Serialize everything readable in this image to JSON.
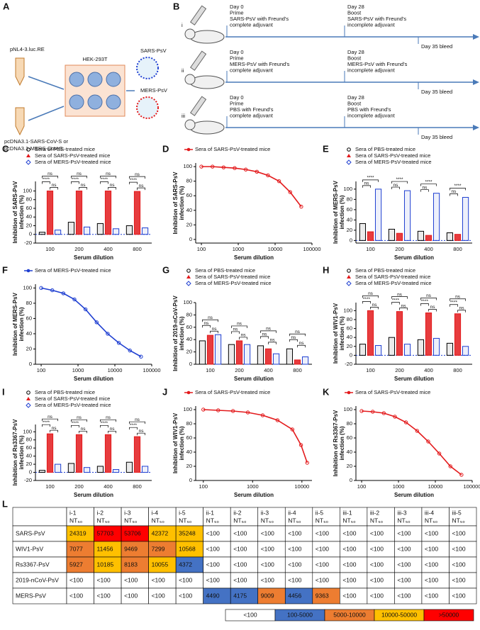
{
  "panel_a": {
    "label": "A",
    "plasmid": "pNL4-3.luc.RE",
    "cell": "HEK-293T",
    "products": [
      "SARS-PsV",
      "MERS-PsV"
    ],
    "plasmids2": [
      "pcDNA3.1-SARS-CoV-S or",
      "pcDNA3.1-MERS-CoV-S"
    ]
  },
  "panel_b": {
    "label": "B",
    "groups": [
      {
        "id": "i",
        "prime": [
          "Day 0",
          "Prime",
          "SARS-PsV with Freund's",
          "complete adjuvant"
        ],
        "boost": [
          "Day 28",
          "Boost",
          "SARS-PsV with Freund's",
          "incomplete adjuvant"
        ],
        "bleed": "Day 35 bleed"
      },
      {
        "id": "ii",
        "prime": [
          "Day 0",
          "Prime",
          "MERS-PsV with Freund's",
          "complete adjuvant"
        ],
        "boost": [
          "Day 28",
          "Boost",
          "MERS-PsV with Freund's",
          "incomplete adjuvant"
        ],
        "bleed": "Day 35 bleed"
      },
      {
        "id": "iii",
        "prime": [
          "Day 0",
          "Prime",
          "PBS with Freund's",
          "complete adjuvant"
        ],
        "boost": [
          "Day 28",
          "Boost",
          "PBS with Freund's",
          "incomplete adjuvant"
        ],
        "bleed": "Day 35 bleed"
      }
    ]
  },
  "chart_data": [
    {
      "panel": "C",
      "type": "bar",
      "ylabel": [
        "Inhibition of SARS-PsV",
        "infection (%)"
      ],
      "xlabel": "Serum dilution",
      "categories": [
        100,
        200,
        400,
        800
      ],
      "series": [
        {
          "name": "Sera of PBS-treated mice",
          "color": "#000000",
          "values": [
            5,
            28,
            25,
            20
          ]
        },
        {
          "name": "Sera of SARS-PsV-treated mice",
          "color": "#e31a1c",
          "values": [
            100,
            100,
            100,
            99
          ]
        },
        {
          "name": "Sera of MERS-PsV-treated mice",
          "color": "#1f3fd1",
          "values": [
            10,
            17,
            13,
            15
          ]
        }
      ],
      "sig": [
        [
          "ns",
          "****",
          "ns"
        ],
        [
          "ns",
          "****",
          "ns"
        ],
        [
          "ns",
          "****",
          "ns"
        ],
        [
          "ns",
          "****",
          "ns"
        ]
      ],
      "ylim": [
        -20,
        122
      ],
      "yticks": [
        -20,
        0,
        20,
        40,
        60,
        80,
        100
      ]
    },
    {
      "panel": "D",
      "type": "line",
      "ylabel": [
        "Inhibition of SARS-PsV",
        "infection (%)"
      ],
      "xlabel": "Serum dilution",
      "log_x": true,
      "x": [
        100,
        200,
        400,
        800,
        1600,
        3200,
        6400,
        12800,
        25600,
        51200
      ],
      "series": [
        {
          "name": "Sera of SARS-PsV-treated mice",
          "color": "#e31a1c",
          "values": [
            100,
            100,
            99,
            98,
            96,
            93,
            88,
            80,
            65,
            45
          ]
        }
      ],
      "xlim": [
        70,
        100000
      ],
      "xticks": [
        100,
        1000,
        10000,
        100000
      ],
      "ylim": [
        -5,
        105
      ],
      "yticks": [
        0,
        20,
        40,
        60,
        80,
        100
      ]
    },
    {
      "panel": "E",
      "type": "bar",
      "ylabel": [
        "Inhibition of MERS-PsV",
        "infection (%)"
      ],
      "xlabel": "Serum dilution",
      "categories": [
        100,
        200,
        400,
        800
      ],
      "series": [
        {
          "name": "Sera of PBS-treated mice",
          "color": "#000000",
          "values": [
            33,
            22,
            18,
            15
          ]
        },
        {
          "name": "Sera of SARS-PsV-treated mice",
          "color": "#e31a1c",
          "values": [
            17,
            14,
            10,
            12
          ]
        },
        {
          "name": "Sera of MERS-PsV-treated mice",
          "color": "#1f3fd1",
          "values": [
            100,
            97,
            92,
            84
          ]
        }
      ],
      "sig": [
        [
          "****",
          "ns"
        ],
        [
          "****",
          "ns"
        ],
        [
          "****",
          "ns"
        ],
        [
          "****",
          "ns"
        ]
      ],
      "ylim": [
        -5,
        115
      ],
      "yticks": [
        0,
        20,
        40,
        60,
        80,
        100
      ]
    },
    {
      "panel": "F",
      "type": "line",
      "ylabel": [
        "Inhibition of MERS-PsV",
        "infection (%)"
      ],
      "xlabel": "Serum dilution",
      "log_x": true,
      "x": [
        100,
        200,
        400,
        800,
        1600,
        3200,
        6400,
        12800,
        25600,
        51200
      ],
      "series": [
        {
          "name": "Sera of MERS-PsV-treated mice",
          "color": "#1f3fd1",
          "values": [
            100,
            97,
            93,
            85,
            72,
            55,
            40,
            28,
            18,
            10
          ]
        }
      ],
      "xlim": [
        70,
        100000
      ],
      "xticks": [
        100,
        1000,
        10000,
        100000
      ],
      "ylim": [
        0,
        105
      ],
      "yticks": [
        0,
        20,
        40,
        60,
        80,
        100
      ]
    },
    {
      "panel": "G",
      "type": "bar",
      "ylabel": [
        "Inhibition of 2019-nCoV-PsV",
        "infection (%)"
      ],
      "xlabel": "Serum dilution",
      "categories": [
        100,
        200,
        400,
        800
      ],
      "series": [
        {
          "name": "Sera of PBS-treated mice",
          "color": "#000000",
          "values": [
            38,
            32,
            30,
            25
          ]
        },
        {
          "name": "Sera of SARS-PsV-treated mice",
          "color": "#e31a1c",
          "values": [
            47,
            38,
            25,
            7
          ]
        },
        {
          "name": "Sera of MERS-PsV-treated mice",
          "color": "#1f3fd1",
          "values": [
            48,
            32,
            17,
            12
          ]
        }
      ],
      "sig": [
        [
          "ns",
          "ns",
          "ns"
        ],
        [
          "ns",
          "ns",
          "ns"
        ],
        [
          "ns",
          "ns",
          "ns"
        ],
        [
          "ns",
          "ns",
          "ns"
        ]
      ],
      "ylim": [
        0,
        100
      ],
      "yticks": [
        0,
        20,
        40,
        60,
        80,
        100
      ]
    },
    {
      "panel": "H",
      "type": "bar",
      "ylabel": [
        "Inhibition of WIV1-PsV",
        "infection (%)"
      ],
      "xlabel": "Serum dilution",
      "categories": [
        100,
        200,
        400,
        800
      ],
      "series": [
        {
          "name": "Sera of PBS-treated mice",
          "color": "#000000",
          "values": [
            25,
            40,
            35,
            27
          ]
        },
        {
          "name": "Sera of SARS-PsV-treated mice",
          "color": "#e31a1c",
          "values": [
            100,
            98,
            95,
            93
          ]
        },
        {
          "name": "Sera of MERS-PsV-treated mice",
          "color": "#1f3fd1",
          "values": [
            22,
            25,
            38,
            20
          ]
        }
      ],
      "sig": [
        [
          "ns",
          "****",
          "ns"
        ],
        [
          "ns",
          "****",
          "ns"
        ],
        [
          "ns",
          "****",
          "ns"
        ],
        [
          "ns",
          "****",
          "ns"
        ]
      ],
      "ylim": [
        -20,
        118
      ],
      "yticks": [
        -20,
        0,
        20,
        40,
        60,
        80,
        100
      ]
    },
    {
      "panel": "I",
      "type": "bar",
      "ylabel": [
        "Inhibition of Rs3367-PsV",
        "infection (%)"
      ],
      "xlabel": "Serum dilution",
      "categories": [
        100,
        200,
        400,
        800
      ],
      "series": [
        {
          "name": "Sera of PBS-treated mice",
          "color": "#000000",
          "values": [
            5,
            22,
            15,
            25
          ]
        },
        {
          "name": "Sera of SARS-PsV-treated mice",
          "color": "#e31a1c",
          "values": [
            95,
            93,
            93,
            88
          ]
        },
        {
          "name": "Sera of MERS-PsV-treated mice",
          "color": "#1f3fd1",
          "values": [
            20,
            12,
            7,
            15
          ]
        }
      ],
      "sig": [
        [
          "ns",
          "****",
          "ns"
        ],
        [
          "ns",
          "****",
          "ns"
        ],
        [
          "ns",
          "****",
          "ns"
        ],
        [
          "ns",
          "****",
          "ns"
        ]
      ],
      "ylim": [
        -20,
        118
      ],
      "yticks": [
        -20,
        0,
        20,
        40,
        60,
        80,
        100
      ]
    },
    {
      "panel": "J",
      "type": "line",
      "ylabel": [
        "Inhibition of WIV1-PsV",
        "infection (%)"
      ],
      "xlabel": "Serum dilution",
      "log_x": true,
      "x": [
        100,
        200,
        400,
        800,
        1600,
        3200,
        6400,
        9600,
        12800
      ],
      "series": [
        {
          "name": "Sera of SARS-PsV-treated mice",
          "color": "#e31a1c",
          "values": [
            100,
            99,
            98,
            96,
            92,
            85,
            72,
            50,
            25
          ]
        }
      ],
      "xlim": [
        70,
        16000
      ],
      "xticks": [
        100,
        1000,
        10000
      ],
      "ylim": [
        0,
        105
      ],
      "yticks": [
        0,
        20,
        40,
        60,
        80,
        100
      ]
    },
    {
      "panel": "K",
      "type": "line",
      "ylabel": [
        "Inhibition of Rs3367-PsV",
        "infection (%)"
      ],
      "xlabel": "Serum dilution",
      "log_x": true,
      "x": [
        100,
        200,
        400,
        800,
        1600,
        3200,
        6400,
        12800,
        25600,
        51200
      ],
      "series": [
        {
          "name": "Sera of SARS-PsV-treated mice",
          "color": "#e31a1c",
          "values": [
            98,
            97,
            95,
            90,
            82,
            70,
            55,
            38,
            20,
            8
          ]
        }
      ],
      "xlim": [
        70,
        100000
      ],
      "xticks": [
        100,
        1000,
        10000,
        100000
      ],
      "ylim": [
        0,
        105
      ],
      "yticks": [
        0,
        20,
        40,
        60,
        80,
        100
      ]
    }
  ],
  "table": {
    "label": "L",
    "columns": [
      "i-1",
      "i-2",
      "i-3",
      "i-4",
      "i-5",
      "ii-1",
      "ii-2",
      "ii-3",
      "ii-4",
      "ii-5",
      "iii-1",
      "iii-2",
      "iii-3",
      "iii-4",
      "iii-5"
    ],
    "unit": "NT₅₀",
    "rows": [
      {
        "name": "SARS-PsV",
        "cells": [
          24319,
          57703,
          53706,
          42372,
          35248,
          "<100",
          "<100",
          "<100",
          "<100",
          "<100",
          "<100",
          "<100",
          "<100",
          "<100",
          "<100"
        ]
      },
      {
        "name": "WIV1-PsV",
        "cells": [
          7077,
          11456,
          9469,
          7299,
          10568,
          "<100",
          "<100",
          "<100",
          "<100",
          "<100",
          "<100",
          "<100",
          "<100",
          "<100",
          "<100"
        ]
      },
      {
        "name": "Rs3367-PsV",
        "cells": [
          5927,
          10185,
          8183,
          10055,
          4372,
          "<100",
          "<100",
          "<100",
          "<100",
          "<100",
          "<100",
          "<100",
          "<100",
          "<100",
          "<100"
        ]
      },
      {
        "name": "2019-nCoV-PsV",
        "cells": [
          "<100",
          "<100",
          "<100",
          "<100",
          "<100",
          "<100",
          "<100",
          "<100",
          "<100",
          "<100",
          "<100",
          "<100",
          "<100",
          "<100",
          "<100"
        ]
      },
      {
        "name": "MERS-PsV",
        "cells": [
          "<100",
          "<100",
          "<100",
          "<100",
          "<100",
          4490,
          4175,
          9009,
          4456,
          9363,
          "<100",
          "<100",
          "<100",
          "<100",
          "<100"
        ]
      }
    ],
    "legend": [
      {
        "label": "<100",
        "color": "#ffffff"
      },
      {
        "label": "100-5000",
        "color": "#4472c4"
      },
      {
        "label": "5000-10000",
        "color": "#ed7d31"
      },
      {
        "label": "10000-50000",
        "color": "#ffc000"
      },
      {
        "label": ">50000",
        "color": "#ff0000"
      }
    ]
  }
}
